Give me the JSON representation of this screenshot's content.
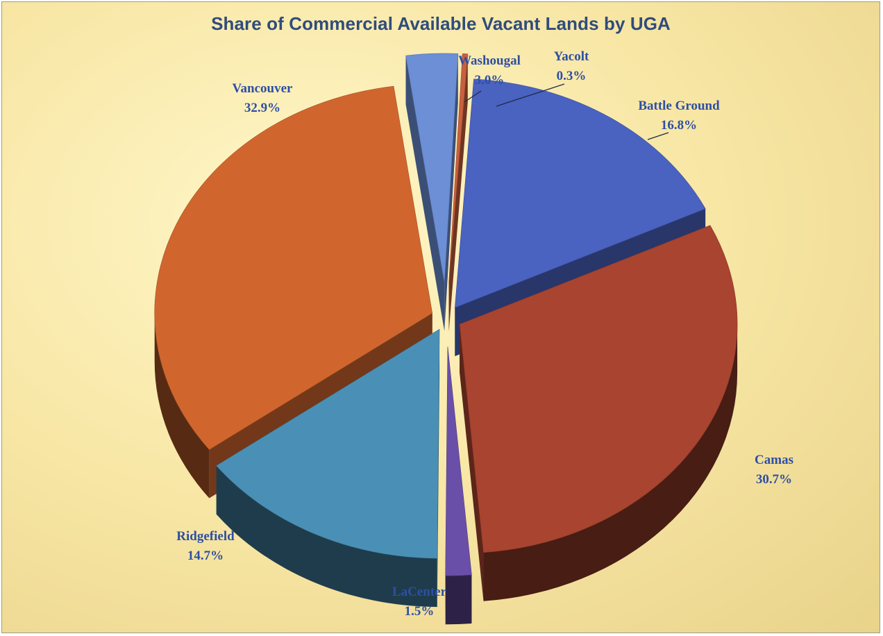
{
  "chart_data": {
    "type": "pie",
    "title": "Share of Commercial Available Vacant Lands by UGA",
    "style": "3d-exploded",
    "slices": [
      {
        "name": "Washougal",
        "value": 3.0,
        "label": "3.0%",
        "color": "#6c8fd6"
      },
      {
        "name": "Yacolt",
        "value": 0.3,
        "label": "0.3%",
        "color": "#c8603e"
      },
      {
        "name": "Battle Ground",
        "value": 16.8,
        "label": "16.8%",
        "color": "#4a62c0"
      },
      {
        "name": "Camas",
        "value": 30.7,
        "label": "30.7%",
        "color": "#a84430"
      },
      {
        "name": "LaCenter",
        "value": 1.5,
        "label": "1.5%",
        "color": "#6a4fa8"
      },
      {
        "name": "Ridgefield",
        "value": 14.7,
        "label": "14.7%",
        "color": "#4a90b6"
      },
      {
        "name": "Vancouver",
        "value": 32.9,
        "label": "32.9%",
        "color": "#d0662e"
      }
    ],
    "legend": "none",
    "label_color": "#2d4fa3",
    "title_color": "#2f4c7b"
  }
}
